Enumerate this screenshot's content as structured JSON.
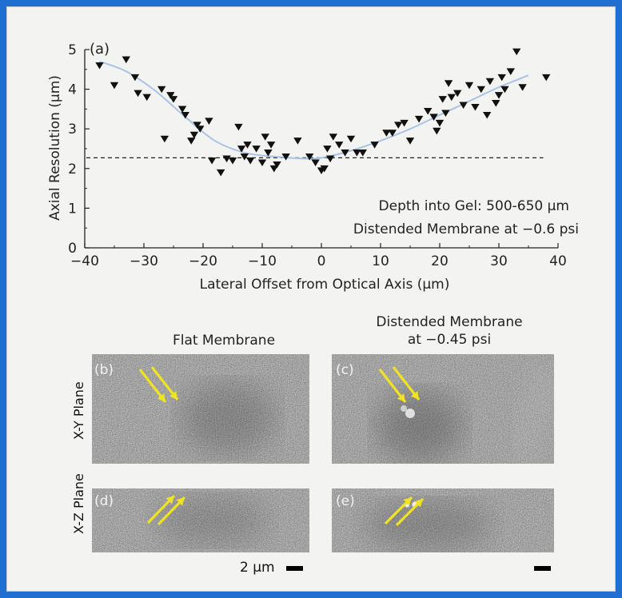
{
  "chart_data": {
    "type": "scatter",
    "panel_label": "(a)",
    "xlabel": "Lateral Offset from Optical Axis (µm)",
    "ylabel": "Axial Resolution (µm)",
    "xlim": [
      -40,
      40
    ],
    "ylim": [
      0,
      5
    ],
    "x_ticks": [
      -40,
      -30,
      -20,
      -10,
      0,
      10,
      20,
      30,
      40
    ],
    "x_tick_labels": [
      "−40",
      "−30",
      "−20",
      "−10",
      "0",
      "10",
      "20",
      "30",
      "40"
    ],
    "y_ticks": [
      0,
      1,
      2,
      3,
      4,
      5
    ],
    "y_tick_labels": [
      "0",
      "1",
      "2",
      "3",
      "4",
      "5"
    ],
    "marker": "downward-triangle",
    "baseline": 2.27,
    "annotation": [
      "Depth into Gel: 500-650 µm",
      "Distended Membrane at −0.6 psi"
    ],
    "points": [
      [
        -37.5,
        4.6
      ],
      [
        -35,
        4.1
      ],
      [
        -33,
        4.75
      ],
      [
        -31.5,
        4.3
      ],
      [
        -31,
        3.9
      ],
      [
        -29.5,
        3.8
      ],
      [
        -27,
        4.0
      ],
      [
        -26.5,
        2.75
      ],
      [
        -25.5,
        3.85
      ],
      [
        -25,
        3.75
      ],
      [
        -23.5,
        3.5
      ],
      [
        -23,
        3.35
      ],
      [
        -22,
        2.7
      ],
      [
        -21.5,
        2.85
      ],
      [
        -21,
        3.1
      ],
      [
        -20.5,
        3.0
      ],
      [
        -19,
        3.2
      ],
      [
        -18.5,
        2.2
      ],
      [
        -17,
        1.9
      ],
      [
        -16,
        2.25
      ],
      [
        -15,
        2.2
      ],
      [
        -14,
        3.05
      ],
      [
        -13.5,
        2.5
      ],
      [
        -13,
        2.3
      ],
      [
        -12.5,
        2.6
      ],
      [
        -12,
        2.2
      ],
      [
        -11,
        2.5
      ],
      [
        -10,
        2.15
      ],
      [
        -9.5,
        2.8
      ],
      [
        -9,
        2.4
      ],
      [
        -8.5,
        2.6
      ],
      [
        -8,
        2.0
      ],
      [
        -7.5,
        2.1
      ],
      [
        -6,
        2.3
      ],
      [
        -4,
        2.7
      ],
      [
        -2,
        2.3
      ],
      [
        -1,
        2.15
      ],
      [
        0,
        1.95
      ],
      [
        0.5,
        2.0
      ],
      [
        1,
        2.5
      ],
      [
        1.5,
        2.25
      ],
      [
        2,
        2.8
      ],
      [
        3,
        2.6
      ],
      [
        4,
        2.4
      ],
      [
        5,
        2.75
      ],
      [
        6,
        2.4
      ],
      [
        7,
        2.4
      ],
      [
        9,
        2.6
      ],
      [
        11,
        2.9
      ],
      [
        12,
        2.9
      ],
      [
        13,
        3.1
      ],
      [
        14,
        3.15
      ],
      [
        15,
        2.7
      ],
      [
        16.5,
        3.25
      ],
      [
        18,
        3.45
      ],
      [
        19,
        3.3
      ],
      [
        19.5,
        2.95
      ],
      [
        20,
        3.15
      ],
      [
        20.5,
        3.75
      ],
      [
        21,
        3.4
      ],
      [
        21.5,
        4.15
      ],
      [
        22,
        3.8
      ],
      [
        23,
        3.9
      ],
      [
        24,
        3.6
      ],
      [
        25,
        4.1
      ],
      [
        26,
        3.55
      ],
      [
        27,
        4.0
      ],
      [
        28,
        3.35
      ],
      [
        28.5,
        4.2
      ],
      [
        29.5,
        3.65
      ],
      [
        30,
        3.85
      ],
      [
        30.5,
        4.3
      ],
      [
        31,
        4.0
      ],
      [
        32,
        4.45
      ],
      [
        33,
        4.95
      ],
      [
        34,
        4.05
      ],
      [
        38,
        4.3
      ]
    ],
    "fit_curve": [
      [
        -37.5,
        4.7
      ],
      [
        -33,
        4.45
      ],
      [
        -28,
        3.95
      ],
      [
        -23,
        3.3
      ],
      [
        -18,
        2.7
      ],
      [
        -13,
        2.4
      ],
      [
        -8,
        2.3
      ],
      [
        -3,
        2.25
      ],
      [
        0,
        2.27
      ],
      [
        5,
        2.45
      ],
      [
        10,
        2.7
      ],
      [
        15,
        3.0
      ],
      [
        20,
        3.35
      ],
      [
        25,
        3.7
      ],
      [
        30,
        4.05
      ],
      [
        35,
        4.35
      ]
    ],
    "colors": {
      "marker": "#111111",
      "fit": "#a9c3e6",
      "baseline": "#222222"
    }
  },
  "micrographs": {
    "col_titles": [
      "Flat Membrane",
      "Distended Membrane\nat −0.45 psi"
    ],
    "row_labels": [
      "X-Y Plane",
      "X-Z Plane"
    ],
    "panels": [
      {
        "letter": "(b)"
      },
      {
        "letter": "(c)"
      },
      {
        "letter": "(d)"
      },
      {
        "letter": "(e)"
      }
    ],
    "scale_label": "2 µm",
    "arrow_color": "#f0e322"
  },
  "colors": {
    "frame": "#1f6fd1",
    "panel_bg": "#f3f3f1"
  }
}
